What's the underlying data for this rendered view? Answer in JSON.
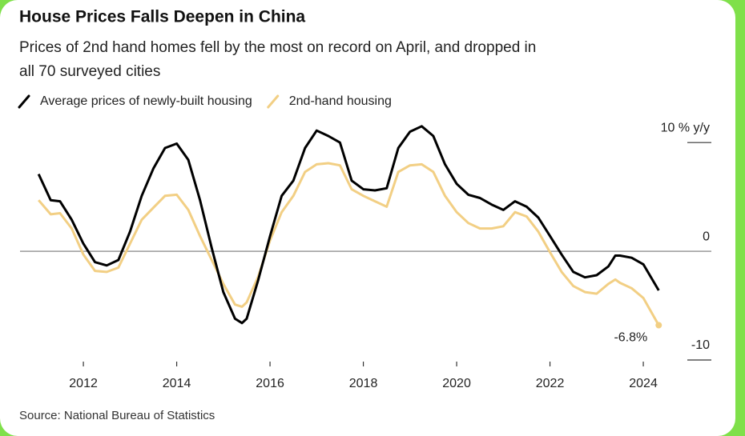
{
  "chart_data": {
    "type": "line",
    "title": "House Prices Falls Deepen in China",
    "subtitle": [
      "Prices of 2nd hand homes fell by the most on record on April, and dropped in",
      "all 70 surveyed cities"
    ],
    "source": "Source: National Bureau of Statistics",
    "annotations": [
      {
        "text": "-6.8%"
      }
    ],
    "x": [
      2011.04,
      2011.3,
      2011.5,
      2011.75,
      2012.0,
      2012.25,
      2012.5,
      2012.75,
      2013.0,
      2013.25,
      2013.5,
      2013.75,
      2014.0,
      2014.25,
      2014.5,
      2014.75,
      2015.0,
      2015.25,
      2015.4,
      2015.5,
      2015.75,
      2016.0,
      2016.25,
      2016.5,
      2016.75,
      2017.0,
      2017.25,
      2017.5,
      2017.75,
      2018.0,
      2018.25,
      2018.5,
      2018.75,
      2019.0,
      2019.25,
      2019.5,
      2019.75,
      2020.0,
      2020.25,
      2020.5,
      2020.75,
      2021.0,
      2021.25,
      2021.5,
      2021.75,
      2022.0,
      2022.25,
      2022.5,
      2022.75,
      2023.0,
      2023.25,
      2023.4,
      2023.5,
      2023.75,
      2024.0,
      2024.33
    ],
    "series": [
      {
        "name": "Average prices of newly-built housing",
        "color": "#000000",
        "values": [
          7.1,
          4.7,
          4.6,
          2.9,
          0.7,
          -1.0,
          -1.3,
          -0.8,
          1.8,
          5.1,
          7.6,
          9.5,
          9.9,
          8.4,
          4.7,
          0.3,
          -3.75,
          -6.2,
          -6.6,
          -6.2,
          -2.6,
          1.4,
          5.1,
          6.5,
          9.5,
          11.1,
          10.6,
          10.0,
          6.5,
          5.7,
          5.6,
          5.8,
          9.5,
          11.0,
          11.5,
          10.6,
          8.0,
          6.2,
          5.2,
          4.9,
          4.3,
          3.8,
          4.6,
          4.1,
          3.1,
          1.4,
          -0.3,
          -1.9,
          -2.4,
          -2.2,
          -1.4,
          -0.4,
          -0.4,
          -0.6,
          -1.2,
          -3.6
        ]
      },
      {
        "name": "2nd-hand housing",
        "color": "#f2cf84",
        "values": [
          4.7,
          3.4,
          3.5,
          2.1,
          -0.3,
          -1.8,
          -1.9,
          -1.5,
          0.7,
          2.9,
          4.0,
          5.1,
          5.2,
          3.8,
          1.4,
          -0.8,
          -3.0,
          -4.9,
          -5.1,
          -4.7,
          -2.3,
          1.0,
          3.6,
          5.1,
          7.3,
          8.0,
          8.1,
          7.9,
          5.7,
          5.1,
          4.6,
          4.1,
          7.3,
          7.9,
          8.0,
          7.3,
          5.1,
          3.6,
          2.6,
          2.1,
          2.1,
          2.3,
          3.6,
          3.2,
          1.8,
          -0.1,
          -1.9,
          -3.2,
          -3.75,
          -3.9,
          -3.0,
          -2.6,
          -2.9,
          -3.4,
          -4.3,
          -6.8
        ]
      }
    ],
    "xlim": [
      2010.9,
      2024.6
    ],
    "xticks": [
      2012,
      2014,
      2016,
      2018,
      2020,
      2022,
      2024
    ],
    "ylim": [
      -10,
      12
    ],
    "yticks": [
      {
        "value": 10,
        "label": "10 % y/y"
      },
      0,
      -10
    ]
  }
}
